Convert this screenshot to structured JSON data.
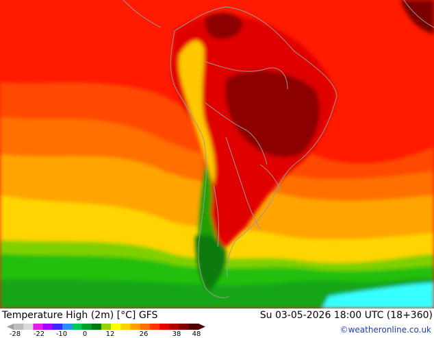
{
  "title": "Temperature High (2m) [°C] GFS",
  "datetime": "Su 03-05-2026 18:00 UTC (18+360)",
  "credit": "©weatheronline.co.uk",
  "legend": {
    "ticks": [
      "-28",
      "-22",
      "-10",
      "0",
      "12",
      "26",
      "38",
      "48"
    ],
    "colors": [
      "#bdbdbd",
      "#d9d9d9",
      "#e41ee4",
      "#aa00ff",
      "#3c28ff",
      "#2a8cff",
      "#00c85a",
      "#00a02a",
      "#007814",
      "#96d200",
      "#ffff00",
      "#ffd200",
      "#ffa000",
      "#ff6e00",
      "#ff3200",
      "#e60000",
      "#b40000",
      "#820000",
      "#500000"
    ]
  },
  "colors": {
    "ocean_hot": "#ff1a00",
    "orange": "#ff7000",
    "yellow_orange": "#ffa400",
    "yellow": "#ffd400",
    "green_light": "#22c00a",
    "green": "#12a512",
    "cyan": "#39ffff",
    "land_dark_red": "#8d0000",
    "land_red": "#c80000",
    "border": "#9a9a9a"
  }
}
